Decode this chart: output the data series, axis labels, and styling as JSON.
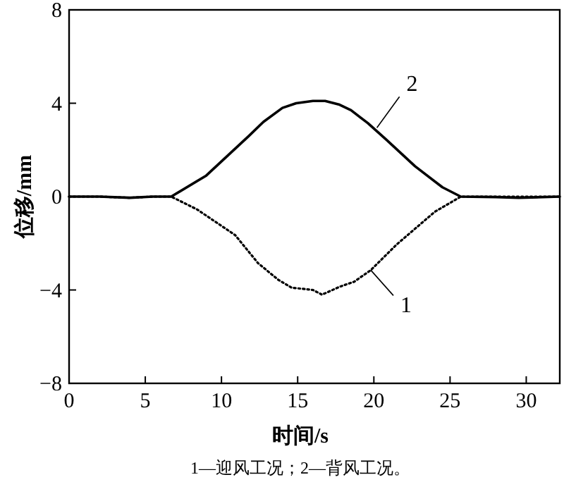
{
  "chart_data": {
    "type": "line",
    "xlabel": "时间/s",
    "ylabel": "位移/mm",
    "xlim": [
      0,
      32.2
    ],
    "xticks": [
      0,
      5,
      10,
      15,
      20,
      25,
      30
    ],
    "ylim": [
      -8,
      8
    ],
    "yticks": [
      {
        "value": -8,
        "label": "−8"
      },
      {
        "value": -4,
        "label": "−4"
      },
      0,
      4,
      8
    ],
    "grid": false,
    "series": [
      {
        "color": "#000000",
        "line_style": "dotted",
        "x": [
          0,
          2,
          4,
          5.5,
          6.7,
          8.4,
          10.9,
          12.4,
          13.7,
          14.6,
          16.0,
          16.6,
          17.8,
          18.7,
          19.8,
          21.5,
          24.0,
          25.7,
          28,
          30,
          32.2
        ],
        "values": [
          0,
          0,
          -0.05,
          0,
          0,
          -0.55,
          -1.65,
          -2.85,
          -3.55,
          -3.9,
          -4.0,
          -4.2,
          -3.85,
          -3.65,
          -3.15,
          -2.05,
          -0.65,
          0,
          0,
          0,
          0
        ]
      },
      {
        "color": "#000000",
        "line_style": "solid",
        "x": [
          0,
          2,
          4,
          5.5,
          6.7,
          9.0,
          11.8,
          12.75,
          14.0,
          14.9,
          16.0,
          16.8,
          17.7,
          18.5,
          19.6,
          20.8,
          22.7,
          24.5,
          25.7,
          28,
          29.5,
          32.2
        ],
        "values": [
          0,
          0,
          -0.05,
          0,
          0,
          0.9,
          2.6,
          3.2,
          3.8,
          4.0,
          4.1,
          4.1,
          3.95,
          3.7,
          3.15,
          2.45,
          1.3,
          0.4,
          0,
          -0.02,
          -0.05,
          0
        ]
      }
    ],
    "annotations": [
      {
        "text": "2",
        "x": 20.2,
        "y": 2.95
      },
      {
        "text": "1",
        "x": 19.8,
        "y": -3.15
      },
      "1—迎风工况；2—背风工况。"
    ]
  }
}
